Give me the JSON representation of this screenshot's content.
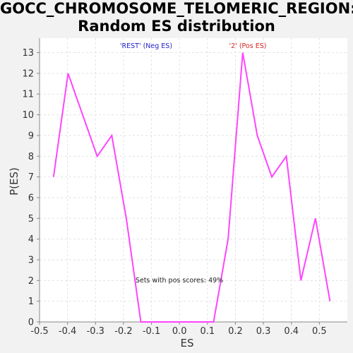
{
  "chart_data": {
    "type": "line",
    "title": [
      "GOCC_CHROMOSOME_TELOMERIC_REGION:",
      "Random ES distribution"
    ],
    "xlabel": "ES",
    "ylabel": "P(ES)",
    "xlim": [
      -0.5,
      0.6
    ],
    "ylim": [
      0,
      13.7
    ],
    "xticks": [
      "-0.5",
      "-0.4",
      "-0.3",
      "-0.2",
      "-0.1",
      "0.0",
      "0.1",
      "0.2",
      "0.3",
      "0.4",
      "0.5"
    ],
    "xtick_values": [
      -0.5,
      -0.4,
      -0.3,
      -0.2,
      -0.1,
      0.0,
      0.1,
      0.2,
      0.3,
      0.4,
      0.5
    ],
    "yticks": [
      0,
      1,
      2,
      3,
      4,
      5,
      6,
      7,
      8,
      9,
      10,
      11,
      12,
      13
    ],
    "grid": true,
    "series": [
      {
        "color": "#ff44ff",
        "x": [
          -0.45,
          -0.398,
          -0.346,
          -0.294,
          -0.242,
          -0.19,
          -0.138,
          -0.086,
          -0.034,
          0.018,
          0.07,
          0.122,
          0.174,
          0.226,
          0.278,
          0.33,
          0.382,
          0.434,
          0.486,
          0.538
        ],
        "y": [
          7,
          12,
          10,
          8,
          9,
          5,
          0,
          0,
          0,
          0,
          0,
          0,
          4,
          13,
          9,
          7,
          8,
          2,
          5,
          1
        ]
      }
    ],
    "annotations": [
      {
        "text": "'REST' (Neg ES)",
        "color": "#2222cc"
      },
      {
        "text": "'2' (Pos ES)",
        "color": "#dd2222"
      },
      {
        "text": "Sets with pos scores: 49%",
        "color": "#222222"
      }
    ]
  }
}
